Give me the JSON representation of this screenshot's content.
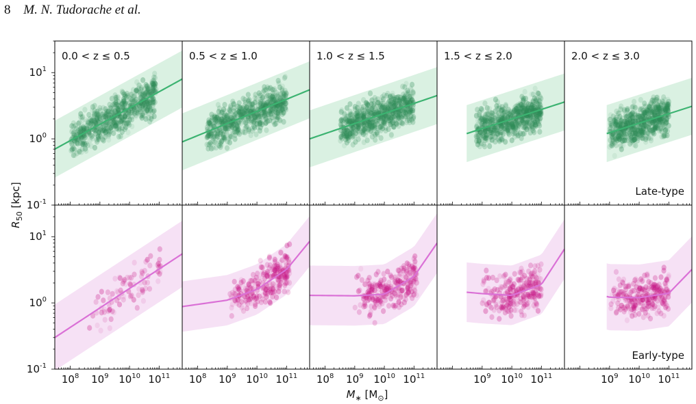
{
  "header": {
    "page_number": "8",
    "authors": "M. N. Tudorache et al."
  },
  "figure": {
    "ylabel_main": "R",
    "ylabel_sub": "50",
    "ylabel_unit": " [kpc]",
    "xlabel_main": "M",
    "xlabel_sub": "∗",
    "xlabel_unit_pre": " [M",
    "xlabel_unit_sub": "⊙",
    "xlabel_unit_post": "]",
    "row_labels": [
      "Late-type",
      "Early-type"
    ],
    "colors": {
      "late": "#3cb371",
      "late_band": "#d4eedd",
      "early": "#da70d6",
      "early_band": "#f5dcf3",
      "early_dark": "#c71585"
    }
  },
  "chart_data": [
    {
      "type": "scatter",
      "panel": "0.0 < z ≤ 0.5",
      "row": "Late-type",
      "xscale": "log",
      "yscale": "log",
      "xlim": [
        30000000.0,
        600000000000.0
      ],
      "ylim": [
        0.1,
        30
      ],
      "xticks": [
        "10^8",
        "10^9",
        "10^10",
        "10^11"
      ],
      "yticks": [
        "10^-1",
        "10^0",
        "10^1"
      ],
      "fit_line": {
        "x": [
          30000000.0,
          600000000000.0
        ],
        "y": [
          0.7,
          8.0
        ]
      },
      "band_width_dex": 0.43
    },
    {
      "type": "scatter",
      "panel": "0.5 < z ≤ 1.0",
      "row": "Late-type",
      "xscale": "log",
      "yscale": "log",
      "xlim": [
        30000000.0,
        600000000000.0
      ],
      "ylim": [
        0.1,
        30
      ],
      "xticks": [
        "10^8",
        "10^9",
        "10^10",
        "10^11"
      ],
      "fit_line": {
        "x": [
          30000000.0,
          600000000000.0
        ],
        "y": [
          0.9,
          5.5
        ]
      },
      "band_width_dex": 0.43
    },
    {
      "type": "scatter",
      "panel": "1.0 < z ≤ 1.5",
      "row": "Late-type",
      "xscale": "log",
      "yscale": "log",
      "xlim": [
        30000000.0,
        600000000000.0
      ],
      "ylim": [
        0.1,
        30
      ],
      "xticks": [
        "10^8",
        "10^9",
        "10^10",
        "10^11"
      ],
      "fit_line": {
        "x": [
          30000000.0,
          600000000000.0
        ],
        "y": [
          1.0,
          4.5
        ]
      },
      "band_width_dex": 0.43
    },
    {
      "type": "scatter",
      "panel": "1.5 < z ≤ 2.0",
      "row": "Late-type",
      "xscale": "log",
      "yscale": "log",
      "xlim": [
        30000000.0,
        600000000000.0
      ],
      "ylim": [
        0.1,
        30
      ],
      "xticks": [
        "10^9",
        "10^10",
        "10^11"
      ],
      "fit_line": {
        "x": [
          300000000.0,
          600000000000.0
        ],
        "y": [
          1.2,
          3.6
        ]
      },
      "band_width_dex": 0.43
    },
    {
      "type": "scatter",
      "panel": "2.0 < z ≤ 3.0",
      "row": "Late-type",
      "xscale": "log",
      "yscale": "log",
      "xlim": [
        30000000.0,
        600000000000.0
      ],
      "ylim": [
        0.1,
        30
      ],
      "xticks": [
        "10^9",
        "10^10",
        "10^11"
      ],
      "fit_line": {
        "x": [
          800000000.0,
          600000000000.0
        ],
        "y": [
          1.2,
          3.1
        ]
      },
      "band_width_dex": 0.43
    },
    {
      "type": "scatter",
      "panel": "0.0 < z ≤ 0.5",
      "row": "Early-type",
      "xscale": "log",
      "yscale": "log",
      "xlim": [
        30000000.0,
        600000000000.0
      ],
      "ylim": [
        0.1,
        30
      ],
      "xticks": [
        "10^8",
        "10^9",
        "10^10",
        "10^11"
      ],
      "yticks": [
        "10^-1",
        "10^0",
        "10^1"
      ],
      "fit_line": {
        "x": [
          30000000.0,
          600000000000.0
        ],
        "y": [
          0.3,
          5.5
        ]
      },
      "band_width_dex": 0.5
    },
    {
      "type": "scatter",
      "panel": "0.5 < z ≤ 1.0",
      "row": "Early-type",
      "xscale": "log",
      "yscale": "log",
      "xlim": [
        30000000.0,
        600000000000.0
      ],
      "ylim": [
        0.1,
        30
      ],
      "xticks": [
        "10^8",
        "10^9",
        "10^10",
        "10^11"
      ],
      "fit_line": {
        "x": [
          30000000.0,
          1000000000.0,
          10000000000.0,
          100000000000.0,
          600000000000.0
        ],
        "y": [
          0.88,
          1.1,
          1.6,
          3.2,
          8.5
        ]
      },
      "band_width_dex": 0.38
    },
    {
      "type": "scatter",
      "panel": "1.0 < z ≤ 1.5",
      "row": "Early-type",
      "xscale": "log",
      "yscale": "log",
      "xlim": [
        30000000.0,
        600000000000.0
      ],
      "ylim": [
        0.1,
        30
      ],
      "xticks": [
        "10^8",
        "10^9",
        "10^10",
        "10^11"
      ],
      "fit_line": {
        "x": [
          30000000.0,
          1000000000.0,
          10000000000.0,
          100000000000.0,
          600000000000.0
        ],
        "y": [
          1.3,
          1.28,
          1.35,
          2.5,
          8.0
        ]
      },
      "band_width_dex": 0.45
    },
    {
      "type": "scatter",
      "panel": "1.5 < z ≤ 2.0",
      "row": "Early-type",
      "xscale": "log",
      "yscale": "log",
      "xlim": [
        30000000.0,
        600000000000.0
      ],
      "ylim": [
        0.1,
        30
      ],
      "xticks": [
        "10^9",
        "10^10",
        "10^11"
      ],
      "fit_line": {
        "x": [
          300000000.0,
          1000000000.0,
          10000000000.0,
          100000000000.0,
          600000000000.0
        ],
        "y": [
          1.45,
          1.38,
          1.3,
          1.9,
          6.5
        ]
      },
      "band_width_dex": 0.45
    },
    {
      "type": "scatter",
      "panel": "2.0 < z ≤ 3.0",
      "row": "Early-type",
      "xscale": "log",
      "yscale": "log",
      "xlim": [
        30000000.0,
        600000000000.0
      ],
      "ylim": [
        0.1,
        30
      ],
      "xticks": [
        "10^9",
        "10^10",
        "10^11"
      ],
      "fit_line": {
        "x": [
          800000000.0,
          1000000000.0,
          10000000000.0,
          100000000000.0,
          600000000000.0
        ],
        "y": [
          1.25,
          1.22,
          1.2,
          1.4,
          3.2
        ]
      },
      "band_width_dex": 0.5
    }
  ]
}
